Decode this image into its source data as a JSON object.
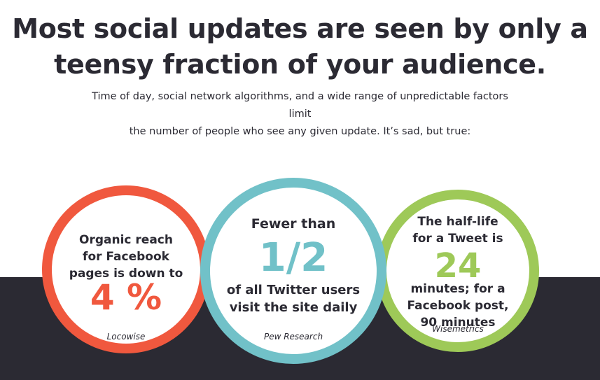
{
  "header": {
    "title_line1": "Most social updates are seen by only a",
    "title_line2": "teensy fraction of your audience.",
    "subtitle_line1": "Time of day, social network algorithms, and a wide range of unpredictable factors limit",
    "subtitle_line2": "the number of people who see any given update. It’s sad, but true:"
  },
  "colors": {
    "dark": "#2b2a33",
    "facebook_accent": "#f0583e",
    "twitter_accent": "#71c1c8",
    "tweet_accent": "#9ec958"
  },
  "stats": [
    {
      "text_lines": [
        "Organic reach",
        "for Facebook",
        "pages is down to"
      ],
      "value": "4 %",
      "source": "Locowise"
    },
    {
      "text_before": "Fewer than",
      "value": "1/2",
      "text_after_lines": [
        "of all Twitter users",
        "visit the site daily"
      ],
      "source": "Pew Research"
    },
    {
      "text_before_lines": [
        "The half-life",
        "for a Tweet is"
      ],
      "value": "24",
      "text_after_lines": [
        "minutes; for a",
        "Facebook post,",
        "90 minutes"
      ],
      "source": "Wisemetrics"
    }
  ]
}
